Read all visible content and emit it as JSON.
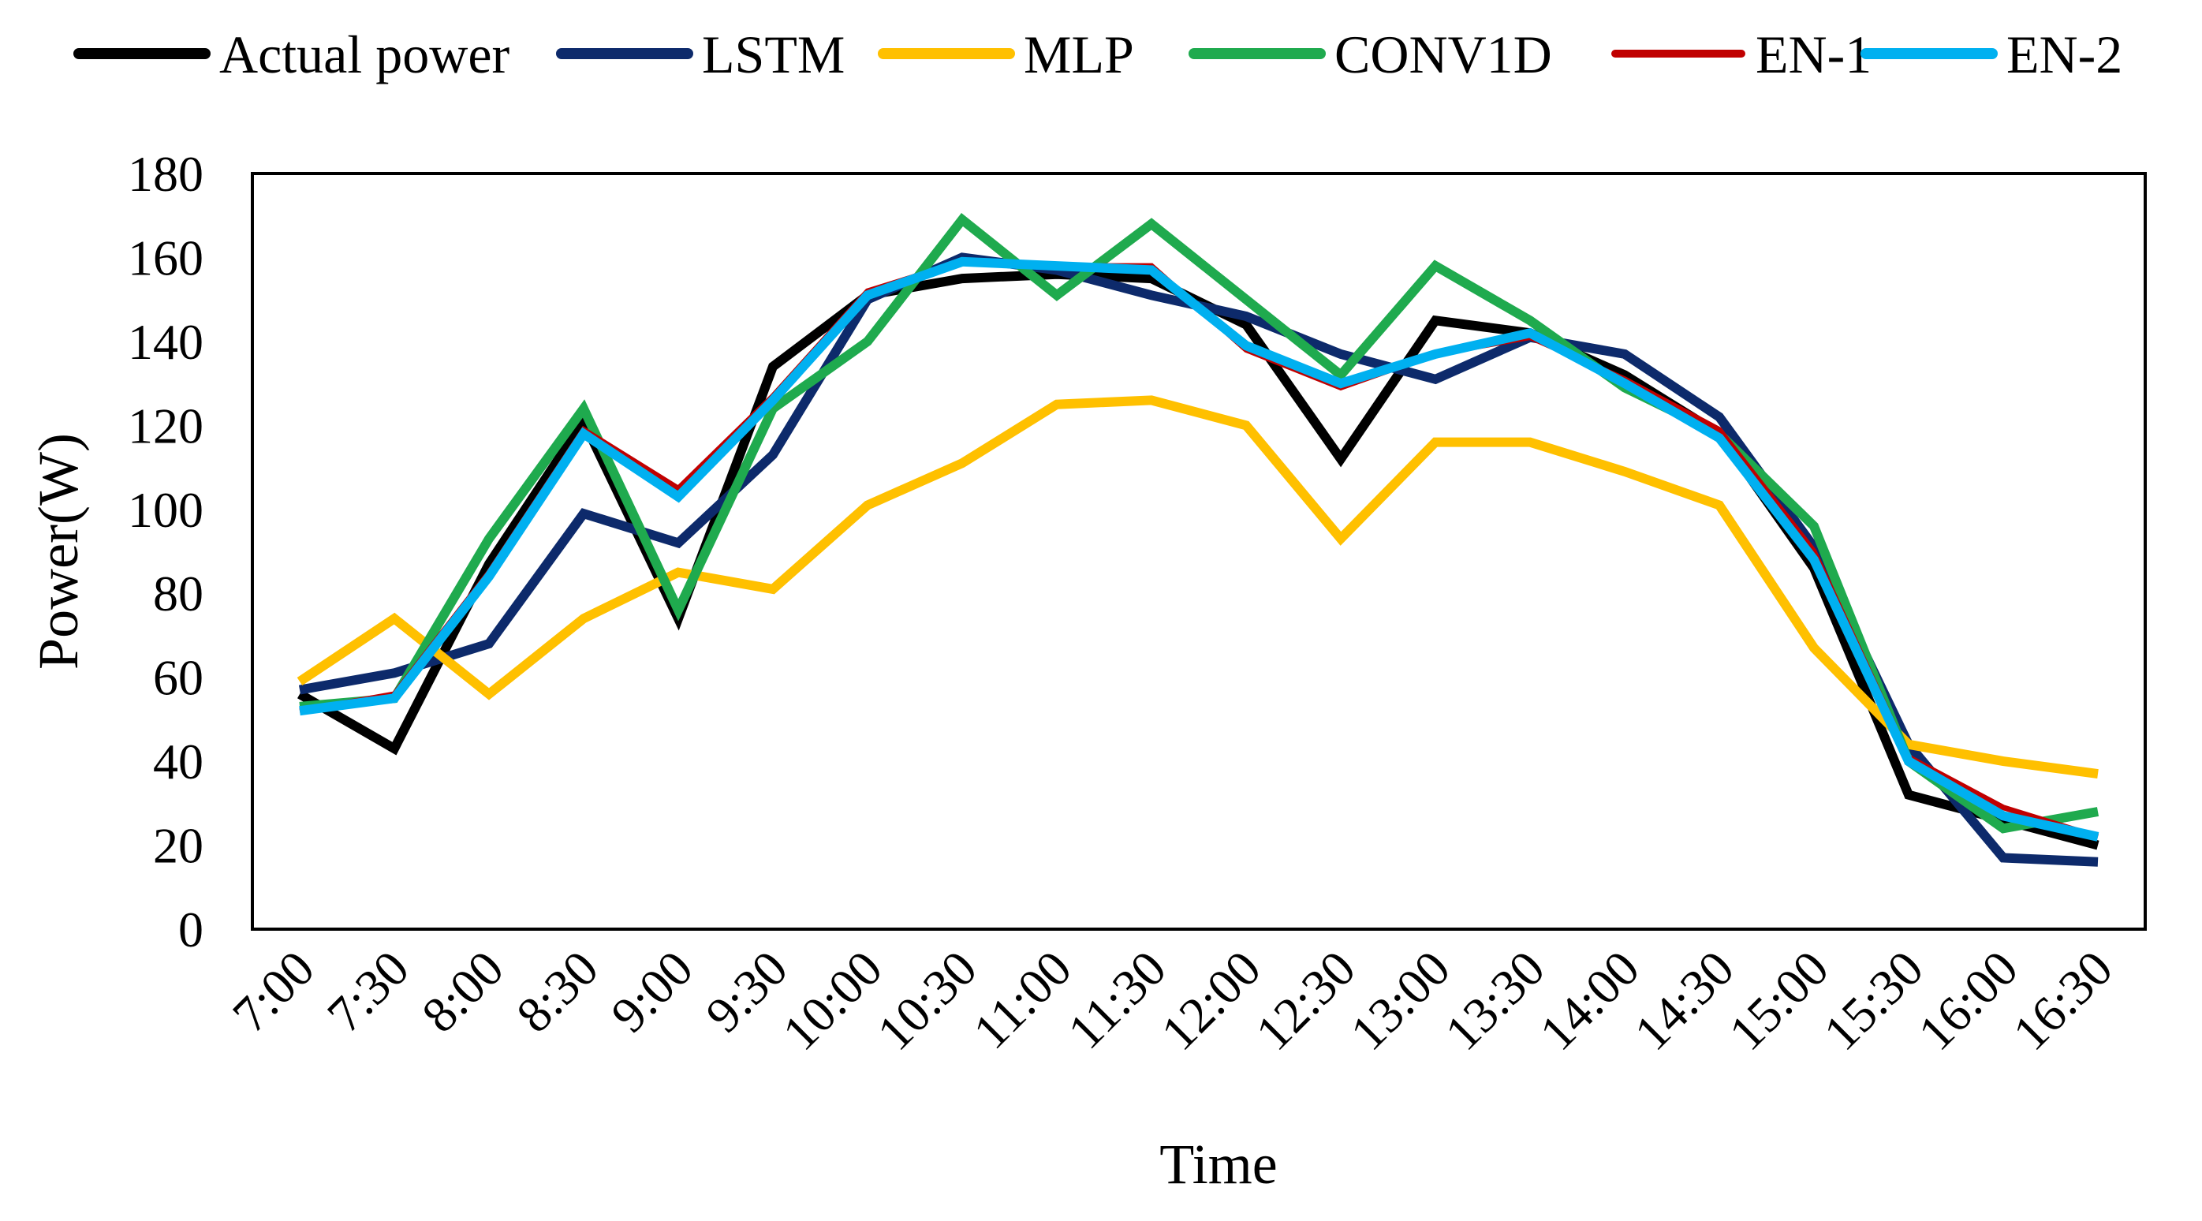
{
  "chart_data": {
    "type": "line",
    "title": "",
    "xlabel": "Time",
    "ylabel": "Power(W)",
    "ylim": [
      0,
      180
    ],
    "yticks": [
      0,
      20,
      40,
      60,
      80,
      100,
      120,
      140,
      160,
      180
    ],
    "grid": false,
    "legend_position": "top",
    "categories": [
      "7:00",
      "7:30",
      "8:00",
      "8:30",
      "9:00",
      "9:30",
      "10:00",
      "10:30",
      "11:00",
      "11:30",
      "12:00",
      "12:30",
      "13:00",
      "13:30",
      "14:00",
      "14:30",
      "15:00",
      "15:30",
      "16:00",
      "16:30"
    ],
    "series": [
      {
        "name": "Actual power",
        "color": "#000000",
        "values": [
          56,
          43,
          87,
          121,
          74,
          134,
          151,
          155,
          156,
          155,
          144,
          112,
          145,
          142,
          132,
          118,
          86,
          32,
          26,
          20
        ]
      },
      {
        "name": "LSTM",
        "color": "#0d2a6b",
        "values": [
          57,
          61,
          68,
          99,
          92,
          113,
          150,
          160,
          157,
          151,
          146,
          137,
          131,
          141,
          137,
          122,
          91,
          44,
          17,
          16
        ]
      },
      {
        "name": "MLP",
        "color": "#ffc000",
        "values": [
          59,
          74,
          56,
          74,
          85,
          81,
          101,
          111,
          125,
          126,
          120,
          93,
          116,
          116,
          109,
          101,
          67,
          44,
          40,
          37
        ]
      },
      {
        "name": "CONV1D",
        "color": "#1faa4e",
        "values": [
          53,
          55,
          93,
          124,
          76,
          124,
          140,
          169,
          151,
          168,
          150,
          132,
          158,
          145,
          129,
          118,
          96,
          40,
          24,
          28
        ]
      },
      {
        "name": "EN-1",
        "color": "#c00000",
        "values": [
          52,
          56,
          85,
          119,
          105,
          127,
          152,
          159,
          158,
          158,
          138,
          129,
          137,
          141,
          131,
          119,
          90,
          41,
          29,
          22
        ]
      },
      {
        "name": "EN-2",
        "color": "#00b0f0",
        "values": [
          52,
          55,
          84,
          118,
          103,
          126,
          151,
          159,
          158,
          157,
          139,
          130,
          137,
          142,
          130,
          117,
          88,
          40,
          27,
          22
        ]
      }
    ]
  }
}
